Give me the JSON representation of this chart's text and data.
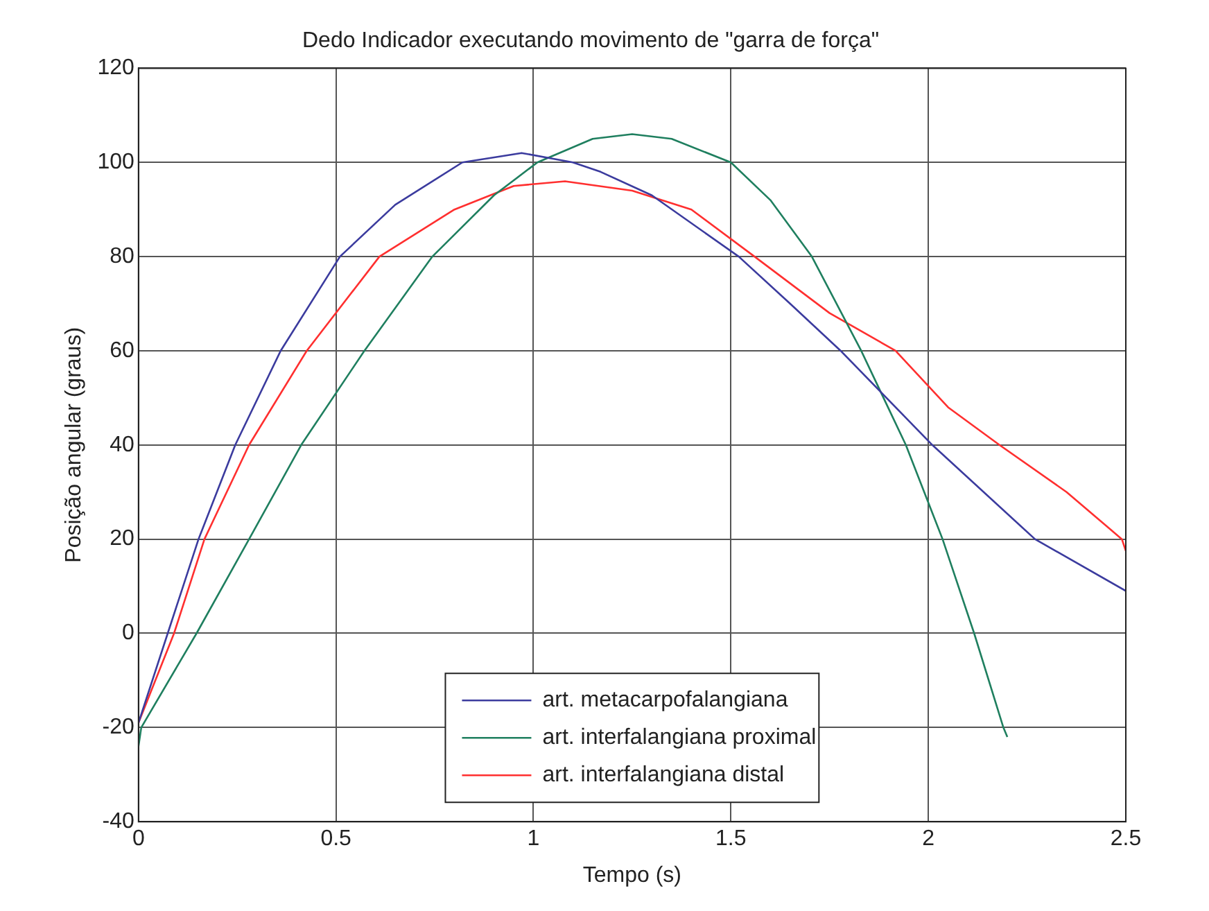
{
  "chart_data": {
    "type": "line",
    "title": "Dedo Indicador executando movimento de \"garra de força\"",
    "xlabel": "Tempo (s)",
    "ylabel": "Posição angular (graus)",
    "xlim": [
      0,
      2.5
    ],
    "xticks": [
      0,
      0.5,
      1,
      1.5,
      2,
      2.5
    ],
    "ylim": [
      -40,
      120
    ],
    "yticks": [
      -40,
      -20,
      0,
      20,
      40,
      60,
      80,
      100,
      120
    ],
    "grid": true,
    "legend": "bottom",
    "marker": "none",
    "line_style": "solid",
    "series": [
      {
        "name": "art. metacarpofalangiana",
        "color": "#3b3b9e",
        "x": [
          0,
          0.074,
          0.152,
          0.245,
          0.36,
          0.51,
          0.65,
          0.82,
          0.97,
          1.1,
          1.17,
          1.3,
          1.52,
          1.65,
          1.778,
          2.01,
          2.27,
          2.5
        ],
        "values": [
          -19,
          0,
          20,
          40,
          60,
          80,
          91,
          100,
          102,
          100,
          98,
          93,
          80,
          70,
          60,
          40,
          20,
          9
        ]
      },
      {
        "name": "art. interfalangiana proximal",
        "color": "#1f7f5f",
        "x": [
          0,
          0.007,
          0.147,
          0.28,
          0.412,
          0.572,
          0.744,
          0.9,
          1.01,
          1.15,
          1.25,
          1.35,
          1.5,
          1.6,
          1.705,
          1.83,
          1.943,
          2.036,
          2.116,
          2.19,
          2.2
        ],
        "values": [
          -24,
          -20,
          0,
          20,
          40,
          60,
          80,
          93,
          100,
          105,
          106,
          105,
          100,
          92,
          80,
          60,
          40,
          20,
          0,
          -20,
          -22
        ]
      },
      {
        "name": "art. interfalangiana distal",
        "color": "#ff2f2f",
        "x": [
          0,
          0.09,
          0.167,
          0.28,
          0.426,
          0.61,
          0.8,
          0.95,
          1.08,
          1.25,
          1.4,
          1.56,
          1.75,
          1.917,
          2.05,
          2.18,
          2.35,
          2.49,
          2.5
        ],
        "values": [
          -19,
          0,
          20,
          40,
          60,
          80,
          90,
          95,
          96,
          94,
          90,
          80,
          68,
          60,
          48,
          40,
          30,
          20,
          17.5
        ]
      }
    ]
  }
}
